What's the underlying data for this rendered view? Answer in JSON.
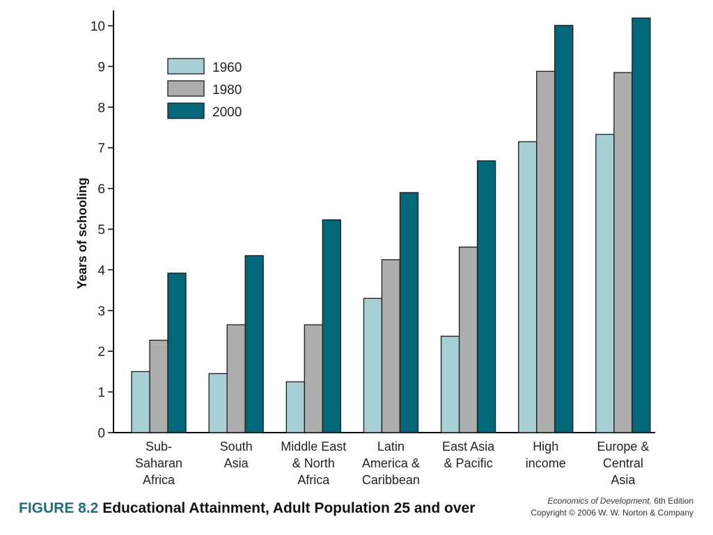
{
  "caption": {
    "figure_number": "FIGURE 8.2",
    "title": "Educational Attainment, Adult Population 25 and over"
  },
  "source": {
    "book_title": "Economics of Development,",
    "edition": " 6th Edition",
    "copyright": "Copyright © 2006 W. W. Norton & Company"
  },
  "chart_data": {
    "type": "bar",
    "title": "",
    "xlabel": "",
    "ylabel": "Years of schooling",
    "ylim": [
      0,
      10
    ],
    "yticks": [
      "0",
      "1",
      "2",
      "3",
      "4",
      "5",
      "6",
      "7",
      "8",
      "9",
      "10"
    ],
    "grid": false,
    "legend_position": "top-left",
    "categories": [
      [
        "Sub-",
        "Saharan",
        "Africa"
      ],
      [
        "South",
        "Asia"
      ],
      [
        "Middle East",
        "& North",
        "Africa"
      ],
      [
        "Latin",
        "America &",
        "Caribbean"
      ],
      [
        "East Asia",
        "& Pacific"
      ],
      [
        "High",
        "income"
      ],
      [
        "Europe &",
        "Central",
        "Asia"
      ]
    ],
    "series": [
      {
        "name": "1960",
        "color": "#a6d0d4",
        "values": [
          1.5,
          1.45,
          1.25,
          3.3,
          2.37,
          7.15,
          7.33
        ]
      },
      {
        "name": "1980",
        "color": "#adadad",
        "values": [
          2.27,
          2.65,
          2.65,
          4.25,
          4.56,
          8.88,
          8.85
        ]
      },
      {
        "name": "2000",
        "color": "#006878",
        "values": [
          3.92,
          4.35,
          5.23,
          5.9,
          6.68,
          10.01,
          10.19
        ]
      }
    ]
  }
}
